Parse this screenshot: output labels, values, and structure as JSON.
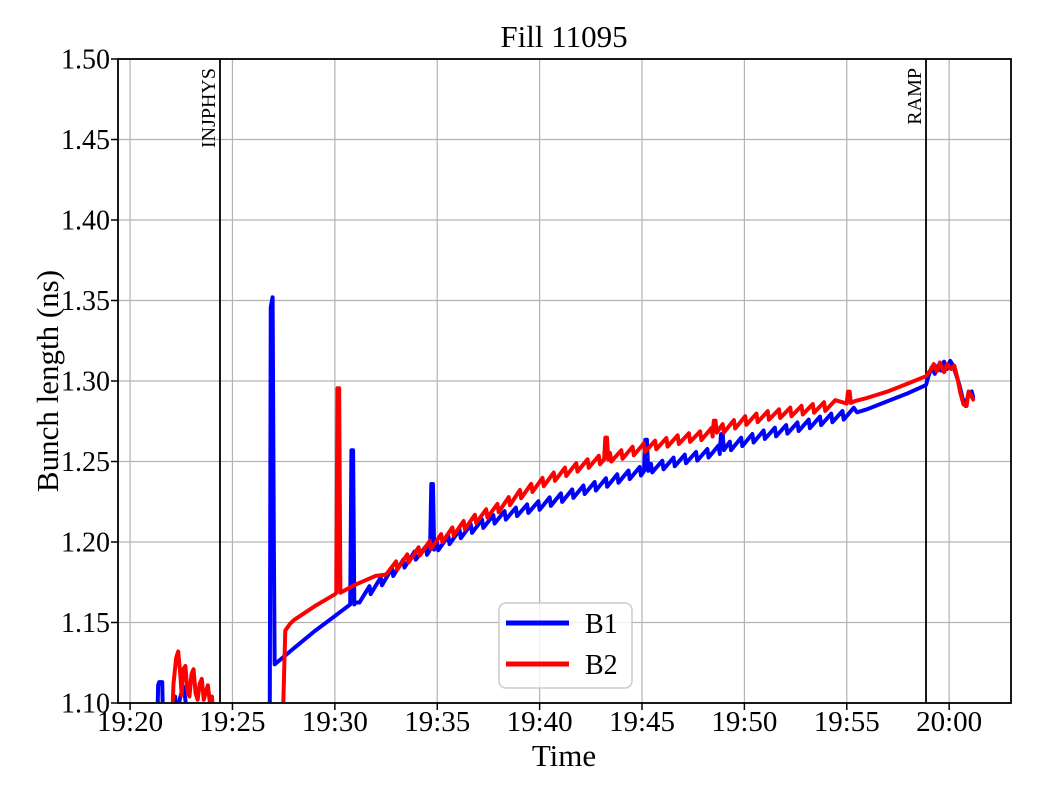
{
  "chart_data": {
    "type": "line",
    "title": "Fill 11095",
    "xlabel": "Time",
    "ylabel": "Bunch length (ns)",
    "x_units": "minutes after 19:00, rendered as HH:MM",
    "xlim": [
      19.41,
      63.02
    ],
    "ylim": [
      1.1,
      1.5
    ],
    "grid": true,
    "colors": {
      "grid": "#b3b3b3",
      "axis": "#000000",
      "event_line": "#000000",
      "legend_border": "#cccccc"
    },
    "x_ticks": [
      {
        "t": 20,
        "label": "19:20"
      },
      {
        "t": 25,
        "label": "19:25"
      },
      {
        "t": 30,
        "label": "19:30"
      },
      {
        "t": 35,
        "label": "19:35"
      },
      {
        "t": 40,
        "label": "19:40"
      },
      {
        "t": 45,
        "label": "19:45"
      },
      {
        "t": 50,
        "label": "19:50"
      },
      {
        "t": 55,
        "label": "19:55"
      },
      {
        "t": 60,
        "label": "20:00"
      }
    ],
    "y_ticks": [
      {
        "v": 1.1,
        "label": "1.10"
      },
      {
        "v": 1.15,
        "label": "1.15"
      },
      {
        "v": 1.2,
        "label": "1.20"
      },
      {
        "v": 1.25,
        "label": "1.25"
      },
      {
        "v": 1.3,
        "label": "1.30"
      },
      {
        "v": 1.35,
        "label": "1.35"
      },
      {
        "v": 1.4,
        "label": "1.40"
      },
      {
        "v": 1.45,
        "label": "1.45"
      },
      {
        "v": 1.5,
        "label": "1.50"
      }
    ],
    "event_lines": [
      {
        "t": 24.39,
        "label": "INJPHYS"
      },
      {
        "t": 58.87,
        "label": "RAMP"
      }
    ],
    "legend": {
      "entries": [
        {
          "label": "B1",
          "color": "#0000ff"
        },
        {
          "label": "B2",
          "color": "#ff0000"
        }
      ]
    },
    "series": [
      {
        "name": "B1",
        "color": "#0000ff",
        "segments": [
          {
            "points": [
              [
                21.32,
                1.082
              ],
              [
                21.37,
                1.111
              ],
              [
                21.42,
                1.113
              ],
              [
                21.57,
                1.113
              ],
              [
                21.62,
                1.082
              ]
            ]
          },
          {
            "points": [
              [
                22.04,
                1.082
              ],
              [
                22.12,
                1.1
              ],
              [
                22.2,
                1.104
              ],
              [
                22.3,
                1.088
              ],
              [
                22.42,
                1.102
              ],
              [
                22.52,
                1.107
              ],
              [
                22.62,
                1.11
              ],
              [
                22.73,
                1.099
              ],
              [
                22.83,
                1.082
              ]
            ]
          },
          {
            "points": [
              [
                26.82,
                1.082
              ],
              [
                26.87,
                1.346
              ],
              [
                26.96,
                1.352
              ],
              [
                27.02,
                1.2
              ],
              [
                27.06,
                1.124
              ],
              [
                28,
                1.134
              ],
              [
                29,
                1.1445
              ],
              [
                30,
                1.154
              ],
              [
                31,
                1.1625
              ],
              [
                32,
                1.172
              ],
              [
                33,
                1.1825
              ],
              [
                34,
                1.1915
              ],
              [
                35,
                1.1965
              ],
              [
                36,
                1.2035
              ],
              [
                37,
                1.2095
              ],
              [
                38,
                1.2145
              ],
              [
                39,
                1.2185
              ],
              [
                40,
                1.222
              ],
              [
                41,
                1.2265
              ],
              [
                42,
                1.231
              ],
              [
                43,
                1.235
              ],
              [
                44,
                1.2395
              ],
              [
                45,
                1.2435
              ],
              [
                46,
                1.247
              ],
              [
                47,
                1.2505
              ],
              [
                48,
                1.2535
              ],
              [
                49,
                1.2575
              ],
              [
                50,
                1.262
              ],
              [
                51,
                1.266
              ],
              [
                52,
                1.269
              ],
              [
                53,
                1.272
              ],
              [
                54,
                1.2755
              ],
              [
                55,
                1.2785
              ],
              [
                55.5,
                1.2805
              ],
              [
                56,
                1.2825
              ],
              [
                57,
                1.2875
              ],
              [
                58,
                1.2925
              ],
              [
                58.87,
                1.2975
              ],
              [
                59.0,
                1.3035
              ],
              [
                59.15,
                1.3085
              ],
              [
                59.3,
                1.3045
              ],
              [
                59.45,
                1.3095
              ],
              [
                59.6,
                1.3065
              ],
              [
                59.75,
                1.312
              ],
              [
                59.9,
                1.3075
              ],
              [
                60.05,
                1.3125
              ],
              [
                60.2,
                1.3095
              ],
              [
                60.35,
                1.3035
              ],
              [
                60.5,
                1.2975
              ],
              [
                60.65,
                1.2895
              ],
              [
                60.8,
                1.2845
              ],
              [
                60.95,
                1.2925
              ],
              [
                61.1,
                1.2935
              ],
              [
                61.17,
                1.29
              ]
            ],
            "sawtooth": {
              "from": 31.2,
              "to": 55.4,
              "period": 0.55,
              "up": 0.0035,
              "drop": 0.0055
            },
            "spikes": [
              [
                30.85,
                1.257
              ],
              [
                34.75,
                1.236
              ],
              [
                45.2,
                1.2635
              ],
              [
                48.9,
                1.267
              ]
            ]
          }
        ]
      },
      {
        "name": "B2",
        "color": "#ff0000",
        "segments": [
          {
            "points": [
              [
                22.03,
                1.082
              ],
              [
                22.12,
                1.112
              ],
              [
                22.25,
                1.128
              ],
              [
                22.35,
                1.132
              ],
              [
                22.45,
                1.118
              ],
              [
                22.52,
                1.105
              ],
              [
                22.6,
                1.121
              ],
              [
                22.7,
                1.123
              ],
              [
                22.8,
                1.108
              ],
              [
                22.9,
                1.104
              ],
              [
                23.0,
                1.118
              ],
              [
                23.1,
                1.121
              ],
              [
                23.2,
                1.106
              ],
              [
                23.3,
                1.102
              ],
              [
                23.4,
                1.112
              ],
              [
                23.5,
                1.115
              ],
              [
                23.6,
                1.102
              ],
              [
                23.7,
                1.107
              ],
              [
                23.8,
                1.111
              ],
              [
                23.9,
                1.1
              ],
              [
                24.0,
                1.104
              ],
              [
                24.08,
                1.082
              ]
            ]
          },
          {
            "points": [
              [
                27.45,
                1.082
              ],
              [
                27.52,
                1.118
              ],
              [
                27.58,
                1.145
              ],
              [
                27.8,
                1.149
              ],
              [
                28,
                1.1515
              ],
              [
                29,
                1.16
              ],
              [
                30,
                1.1675
              ],
              [
                31,
                1.1735
              ],
              [
                32,
                1.179
              ],
              [
                33,
                1.1845
              ],
              [
                34,
                1.1925
              ],
              [
                35,
                1.2
              ],
              [
                36,
                1.2075
              ],
              [
                37,
                1.2145
              ],
              [
                38,
                1.2205
              ],
              [
                39,
                1.2285
              ],
              [
                40,
                1.2355
              ],
              [
                41,
                1.2415
              ],
              [
                42,
                1.2465
              ],
              [
                43,
                1.2505
              ],
              [
                44,
                1.2535
              ],
              [
                45,
                1.2575
              ],
              [
                46,
                1.2605
              ],
              [
                47,
                1.2635
              ],
              [
                48,
                1.2655
              ],
              [
                49,
                1.27
              ],
              [
                50,
                1.2745
              ],
              [
                51,
                1.2775
              ],
              [
                52,
                1.2795
              ],
              [
                53,
                1.2815
              ],
              [
                54,
                1.2835
              ],
              [
                55,
                1.286
              ],
              [
                55.4,
                1.2875
              ],
              [
                56,
                1.2895
              ],
              [
                57,
                1.2935
              ],
              [
                58,
                1.2985
              ],
              [
                58.87,
                1.303
              ],
              [
                59.1,
                1.307
              ],
              [
                59.25,
                1.3105
              ],
              [
                59.4,
                1.306
              ],
              [
                59.55,
                1.3115
              ],
              [
                59.75,
                1.3055
              ],
              [
                59.9,
                1.3105
              ],
              [
                60.1,
                1.3075
              ],
              [
                60.25,
                1.3095
              ],
              [
                60.4,
                1.302
              ],
              [
                60.55,
                1.2925
              ],
              [
                60.7,
                1.2855
              ],
              [
                60.85,
                1.2845
              ],
              [
                60.95,
                1.2935
              ],
              [
                61.05,
                1.2915
              ],
              [
                61.17,
                1.2885
              ]
            ],
            "sawtooth": {
              "from": 32.5,
              "to": 54.9,
              "period": 0.55,
              "up": 0.0035,
              "drop": 0.0055
            },
            "spikes": [
              [
                30.17,
                1.2955
              ],
              [
                43.25,
                1.2648
              ],
              [
                48.55,
                1.2754
              ],
              [
                55.1,
                1.2934
              ]
            ]
          }
        ]
      }
    ]
  }
}
